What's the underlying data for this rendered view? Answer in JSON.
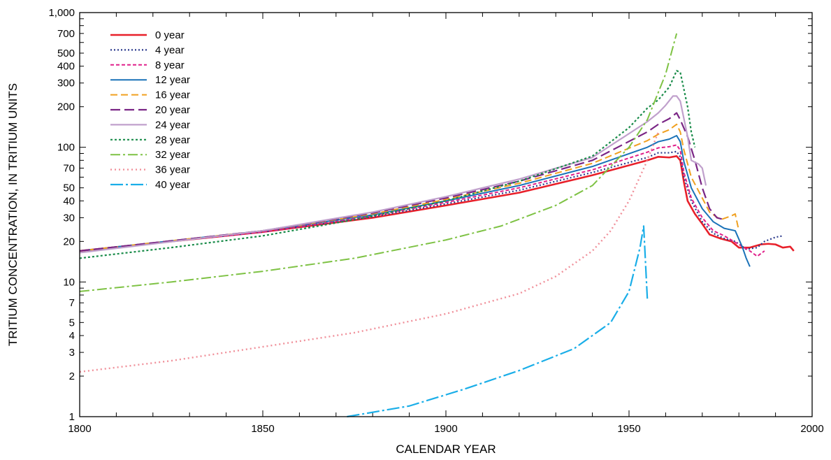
{
  "chart_data": {
    "type": "line",
    "title": "",
    "xlabel": "CALENDAR YEAR",
    "ylabel": "TRITIUM CONCENTRATION, IN TRITIUM UNITS",
    "x_scale": "linear",
    "y_scale": "log",
    "xlim": [
      1800,
      2000
    ],
    "ylim": [
      1,
      1000
    ],
    "x_ticks": [
      1800,
      1850,
      1900,
      1950,
      2000
    ],
    "x_tick_labels": [
      "1800",
      "1850",
      "1900",
      "1950",
      "2000"
    ],
    "y_ticks": [
      1,
      2,
      3,
      4,
      5,
      7,
      10,
      20,
      30,
      40,
      50,
      70,
      100,
      200,
      300,
      400,
      500,
      700,
      1000
    ],
    "y_tick_labels": [
      "1",
      "2",
      "3",
      "4",
      "5",
      "7",
      "10",
      "20",
      "30",
      "40",
      "50",
      "70",
      "100",
      "200",
      "300",
      "400",
      "500",
      "700",
      "1,000"
    ],
    "grid": false,
    "legend_position": "top-left",
    "series": [
      {
        "name": "0 year",
        "color": "#e8202a",
        "dash": "solid",
        "width": 2.6,
        "points": [
          [
            1800,
            17
          ],
          [
            1850,
            23.5
          ],
          [
            1880,
            30
          ],
          [
            1900,
            37
          ],
          [
            1920,
            46
          ],
          [
            1940,
            62
          ],
          [
            1955,
            80
          ],
          [
            1958,
            85
          ],
          [
            1961,
            84
          ],
          [
            1963,
            86
          ],
          [
            1964,
            80
          ],
          [
            1965,
            55
          ],
          [
            1966,
            40
          ],
          [
            1968,
            32
          ],
          [
            1970,
            27
          ],
          [
            1972,
            22.5
          ],
          [
            1975,
            21
          ],
          [
            1978,
            20
          ],
          [
            1980,
            18
          ],
          [
            1983,
            18
          ],
          [
            1986,
            19
          ],
          [
            1988,
            19.2
          ],
          [
            1990,
            19
          ],
          [
            1992,
            18
          ],
          [
            1994,
            18.3
          ],
          [
            1995,
            17
          ]
        ]
      },
      {
        "name": "4 year",
        "color": "#2b3a8c",
        "dash": "2,3",
        "width": 2.2,
        "points": [
          [
            1800,
            17
          ],
          [
            1850,
            23.5
          ],
          [
            1880,
            30.5
          ],
          [
            1900,
            38
          ],
          [
            1920,
            48
          ],
          [
            1940,
            65
          ],
          [
            1955,
            84
          ],
          [
            1958,
            91
          ],
          [
            1961,
            91
          ],
          [
            1963,
            93
          ],
          [
            1964,
            85
          ],
          [
            1965,
            60
          ],
          [
            1967,
            40
          ],
          [
            1970,
            28
          ],
          [
            1973,
            23
          ],
          [
            1976,
            21
          ],
          [
            1979,
            20
          ],
          [
            1982,
            17.5
          ],
          [
            1985,
            18
          ],
          [
            1987,
            20
          ],
          [
            1990,
            21.5
          ],
          [
            1992,
            22
          ]
        ]
      },
      {
        "name": "8 year",
        "color": "#e0208a",
        "dash": "5,3",
        "width": 2.0,
        "points": [
          [
            1800,
            17
          ],
          [
            1850,
            23.5
          ],
          [
            1880,
            31
          ],
          [
            1900,
            39
          ],
          [
            1920,
            50
          ],
          [
            1940,
            68
          ],
          [
            1955,
            92
          ],
          [
            1958,
            99
          ],
          [
            1961,
            101
          ],
          [
            1963,
            104
          ],
          [
            1964,
            95
          ],
          [
            1965,
            65
          ],
          [
            1967,
            42
          ],
          [
            1970,
            30
          ],
          [
            1973,
            24
          ],
          [
            1976,
            22
          ],
          [
            1980,
            19
          ],
          [
            1983,
            17
          ],
          [
            1985,
            15.5
          ],
          [
            1987,
            17
          ]
        ]
      },
      {
        "name": "12 year",
        "color": "#1a72b8",
        "dash": "solid",
        "width": 2.0,
        "points": [
          [
            1800,
            17
          ],
          [
            1850,
            24
          ],
          [
            1880,
            31.5
          ],
          [
            1900,
            40
          ],
          [
            1920,
            52
          ],
          [
            1940,
            72
          ],
          [
            1955,
            100
          ],
          [
            1958,
            110
          ],
          [
            1961,
            115
          ],
          [
            1963,
            122
          ],
          [
            1964,
            110
          ],
          [
            1965,
            78
          ],
          [
            1967,
            50
          ],
          [
            1970,
            35
          ],
          [
            1973,
            28
          ],
          [
            1976,
            25
          ],
          [
            1979,
            24
          ],
          [
            1981,
            18
          ],
          [
            1982,
            15
          ],
          [
            1983,
            13
          ]
        ]
      },
      {
        "name": "16 year",
        "color": "#f0a020",
        "dash": "10,5",
        "width": 2.0,
        "points": [
          [
            1800,
            17
          ],
          [
            1850,
            24
          ],
          [
            1880,
            32
          ],
          [
            1900,
            41
          ],
          [
            1920,
            54
          ],
          [
            1940,
            76
          ],
          [
            1955,
            112
          ],
          [
            1958,
            125
          ],
          [
            1961,
            135
          ],
          [
            1963,
            148
          ],
          [
            1964,
            130
          ],
          [
            1965,
            95
          ],
          [
            1967,
            60
          ],
          [
            1970,
            42
          ],
          [
            1972,
            33
          ],
          [
            1975,
            29
          ],
          [
            1978,
            31
          ],
          [
            1979,
            32
          ],
          [
            1980,
            24
          ]
        ]
      },
      {
        "name": "20 year",
        "color": "#7a2585",
        "dash": "14,6",
        "width": 2.2,
        "points": [
          [
            1800,
            17
          ],
          [
            1850,
            24
          ],
          [
            1880,
            32.5
          ],
          [
            1900,
            42
          ],
          [
            1920,
            56
          ],
          [
            1940,
            80
          ],
          [
            1955,
            130
          ],
          [
            1958,
            148
          ],
          [
            1961,
            163
          ],
          [
            1963,
            180
          ],
          [
            1964,
            160
          ],
          [
            1966,
            120
          ],
          [
            1968,
            80
          ],
          [
            1970,
            50
          ],
          [
            1972,
            35
          ],
          [
            1974,
            30
          ],
          [
            1976,
            29
          ]
        ]
      },
      {
        "name": "24 year",
        "color": "#c0a0cc",
        "dash": "solid",
        "width": 2.2,
        "points": [
          [
            1800,
            16.5
          ],
          [
            1850,
            24
          ],
          [
            1880,
            33
          ],
          [
            1900,
            43
          ],
          [
            1920,
            58
          ],
          [
            1940,
            84
          ],
          [
            1955,
            155
          ],
          [
            1958,
            180
          ],
          [
            1960,
            205
          ],
          [
            1962,
            240
          ],
          [
            1963,
            240
          ],
          [
            1964,
            220
          ],
          [
            1966,
            120
          ],
          [
            1967,
            80
          ],
          [
            1969,
            75
          ],
          [
            1970,
            70
          ],
          [
            1971,
            52
          ]
        ]
      },
      {
        "name": "28 year",
        "color": "#1a8c4a",
        "dash": "3,3",
        "width": 2.2,
        "points": [
          [
            1800,
            15
          ],
          [
            1825,
            18
          ],
          [
            1850,
            22
          ],
          [
            1875,
            29
          ],
          [
            1900,
            40
          ],
          [
            1920,
            56
          ],
          [
            1940,
            86
          ],
          [
            1950,
            140
          ],
          [
            1955,
            195
          ],
          [
            1958,
            225
          ],
          [
            1961,
            280
          ],
          [
            1963,
            370
          ],
          [
            1964,
            360
          ],
          [
            1966,
            200
          ],
          [
            1967,
            130
          ],
          [
            1968,
            100
          ]
        ]
      },
      {
        "name": "32 year",
        "color": "#7ec244",
        "dash": "14,4,3,4",
        "width": 2.0,
        "points": [
          [
            1800,
            8.5
          ],
          [
            1825,
            10
          ],
          [
            1850,
            12
          ],
          [
            1875,
            15
          ],
          [
            1900,
            20.5
          ],
          [
            1915,
            26
          ],
          [
            1930,
            37
          ],
          [
            1940,
            52
          ],
          [
            1950,
            100
          ],
          [
            1955,
            160
          ],
          [
            1960,
            350
          ],
          [
            1963,
            700
          ]
        ]
      },
      {
        "name": "36 year",
        "color": "#f0909a",
        "dash": "2,4",
        "width": 2.4,
        "points": [
          [
            1800,
            2.15
          ],
          [
            1825,
            2.6
          ],
          [
            1850,
            3.3
          ],
          [
            1875,
            4.2
          ],
          [
            1900,
            5.8
          ],
          [
            1920,
            8.2
          ],
          [
            1930,
            11
          ],
          [
            1940,
            17
          ],
          [
            1945,
            24
          ],
          [
            1950,
            40
          ],
          [
            1955,
            80
          ],
          [
            1958,
            130
          ]
        ]
      },
      {
        "name": "40 year",
        "color": "#1aaee8",
        "dash": "18,4,3,4",
        "width": 2.2,
        "points": [
          [
            1873,
            1
          ],
          [
            1890,
            1.2
          ],
          [
            1905,
            1.6
          ],
          [
            1920,
            2.2
          ],
          [
            1935,
            3.2
          ],
          [
            1945,
            5
          ],
          [
            1950,
            8.5
          ],
          [
            1953,
            18
          ],
          [
            1954,
            26
          ],
          [
            1955,
            7.5
          ]
        ]
      }
    ]
  }
}
